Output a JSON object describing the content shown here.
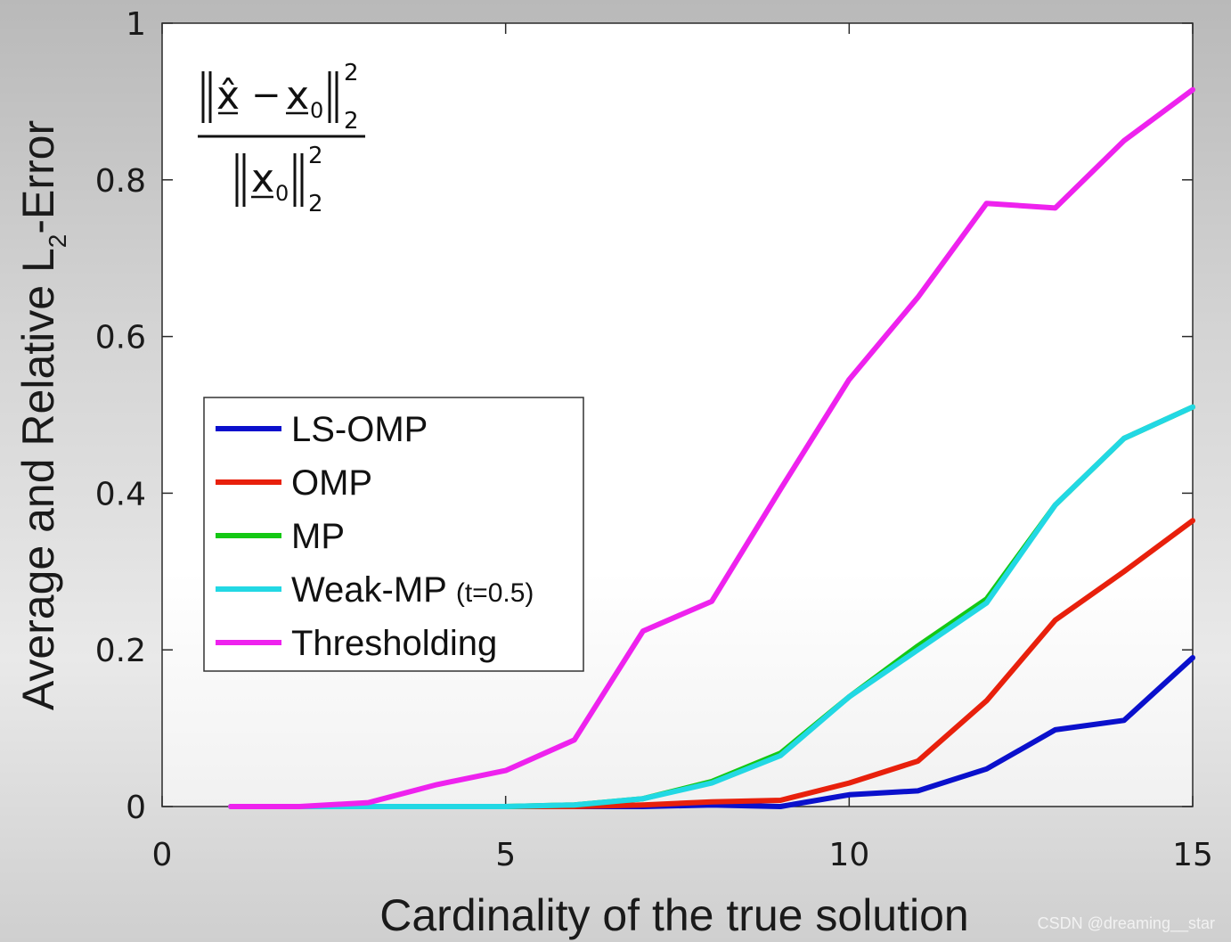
{
  "chart_data": {
    "type": "line",
    "xlabel": "Cardinality of the true solution",
    "ylabel": "Average and Relative L",
    "ylabel_sub": "2",
    "ylabel_suffix": "-Error",
    "xlim": [
      0,
      15
    ],
    "ylim": [
      0,
      1
    ],
    "x_ticks": [
      0,
      5,
      10,
      15
    ],
    "y_ticks": [
      0,
      0.2,
      0.4,
      0.6,
      0.8,
      1
    ],
    "x_tick_labels": [
      "0",
      "5",
      "10",
      "15"
    ],
    "y_tick_labels": [
      "0",
      "0.2",
      "0.4",
      "0.6",
      "0.8",
      "1"
    ],
    "grid": false,
    "legend_position": "center-left",
    "x": [
      1,
      2,
      3,
      4,
      5,
      6,
      7,
      8,
      9,
      10,
      11,
      12,
      13,
      14,
      15
    ],
    "series": [
      {
        "name": "LS-OMP",
        "color": "#0a10cc",
        "values": [
          0,
          0,
          0,
          0,
          0,
          0,
          0,
          0.002,
          0,
          0.015,
          0.02,
          0.048,
          0.098,
          0.11,
          0.19
        ]
      },
      {
        "name": "OMP",
        "color": "#e8200c",
        "values": [
          0,
          0,
          0,
          0,
          0,
          0,
          0.002,
          0.006,
          0.008,
          0.03,
          0.058,
          0.135,
          0.238,
          0.3,
          0.365
        ]
      },
      {
        "name": "MP",
        "color": "#14c814",
        "values": [
          0,
          0,
          0,
          0,
          0,
          0.002,
          0.01,
          0.032,
          0.068,
          0.14,
          0.205,
          0.265,
          0.385,
          0.47,
          0.51
        ]
      },
      {
        "name": "Weak-MP",
        "name_suffix": "(t=0.5)",
        "color": "#22d8e4",
        "values": [
          0,
          0,
          0,
          0,
          0,
          0.002,
          0.01,
          0.03,
          0.065,
          0.14,
          0.2,
          0.26,
          0.385,
          0.47,
          0.51
        ]
      },
      {
        "name": "Thresholding",
        "color": "#ee22ee",
        "values": [
          0,
          0,
          0.005,
          0.028,
          0.046,
          0.085,
          0.224,
          0.262,
          0.405,
          0.545,
          0.65,
          0.77,
          0.764,
          0.85,
          0.915
        ]
      }
    ],
    "formula": {
      "numerator_hat": "x̂",
      "minus": "−",
      "x0": "x",
      "sub0": "0",
      "norm_sub": "2",
      "norm_sup": "2"
    }
  },
  "watermark": "CSDN @dreaming__star"
}
